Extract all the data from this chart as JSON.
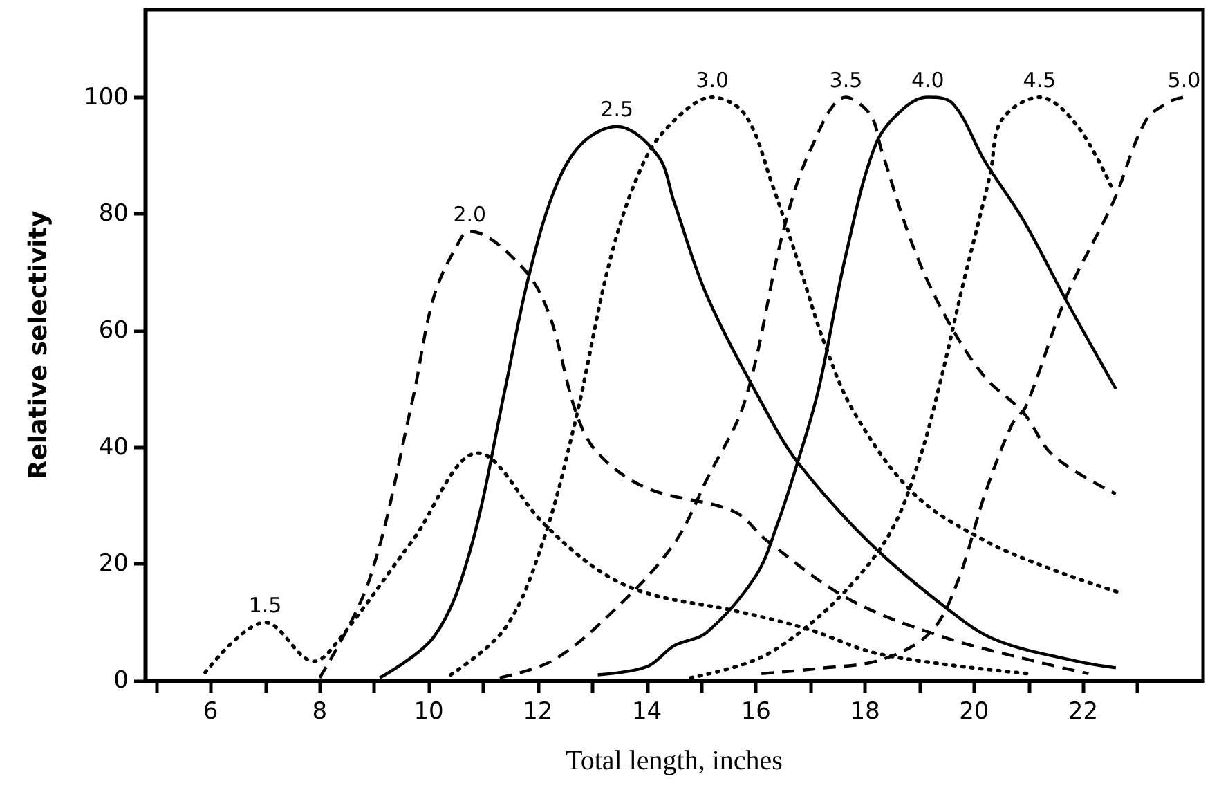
{
  "chart_data": {
    "type": "line",
    "xlabel": "Total length, inches",
    "ylabel": "Relative selectivity",
    "xlim": [
      4.8,
      24.2
    ],
    "ylim": [
      0,
      115
    ],
    "xticks": [
      {
        "value": 5,
        "label": null
      },
      6,
      {
        "value": 7,
        "label": null
      },
      8,
      {
        "value": 9,
        "label": null
      },
      10,
      {
        "value": 11,
        "label": null
      },
      12,
      {
        "value": 13,
        "label": null
      },
      14,
      {
        "value": 15,
        "label": null
      },
      16,
      {
        "value": 17,
        "label": null
      },
      18,
      {
        "value": 19,
        "label": null
      },
      20,
      {
        "value": 21,
        "label": null
      },
      22,
      {
        "value": 23,
        "label": null
      }
    ],
    "yticks": [
      0,
      20,
      40,
      60,
      80,
      100
    ],
    "annotations": [
      {
        "text": "1.5",
        "x": 7.0,
        "y": 10
      },
      {
        "text": "2.0",
        "x": 10.75,
        "y": 77
      },
      {
        "text": "2.5",
        "x": 13.45,
        "y": 95
      },
      {
        "text": "3.0",
        "x": 15.2,
        "y": 100
      },
      {
        "text": "3.5",
        "x": 17.65,
        "y": 100
      },
      {
        "text": "4.0",
        "x": 19.15,
        "y": 100
      },
      {
        "text": "4.5",
        "x": 21.2,
        "y": 100
      },
      {
        "text": "5.0",
        "x": 23.85,
        "y": 100
      }
    ],
    "marker": "none",
    "series": [
      {
        "color": "#000000",
        "line_style": "dotted",
        "x": [
          5.9,
          7.0,
          7.9,
          8.3,
          9.7,
          10.9,
          12.1,
          13.1,
          14.0,
          15.6,
          16.9,
          18.3,
          21.0
        ],
        "values": [
          1.4,
          10,
          3.3,
          6.4,
          24,
          39,
          27,
          19,
          15,
          12,
          9,
          4.5,
          1.2
        ]
      },
      {
        "color": "#000000",
        "line_style": "dashed",
        "x": [
          8.0,
          8.9,
          9.7,
          10.1,
          10.6,
          10.75,
          11.7,
          12.2,
          12.7,
          13.1,
          14.0,
          15.6,
          16.2,
          17.7,
          19.4,
          21.0,
          22.1
        ],
        "values": [
          0.5,
          17,
          48,
          66,
          76,
          77,
          71,
          63,
          46,
          39,
          33,
          29,
          24,
          14,
          7.6,
          3.6,
          1.2
        ]
      },
      {
        "color": "#000000",
        "line_style": "solid",
        "x": [
          9.1,
          10.1,
          10.75,
          11.4,
          11.8,
          12.3,
          12.8,
          13.45,
          14.2,
          14.5,
          15.1,
          16.2,
          16.8,
          18.1,
          19.5,
          20.4,
          21.9,
          22.6
        ],
        "values": [
          0.5,
          7.6,
          22,
          50,
          68,
          84,
          92,
          95,
          90,
          82,
          66,
          46,
          37,
          23.5,
          12.4,
          7,
          3.3,
          2.2
        ]
      },
      {
        "color": "#000000",
        "line_style": "dotted",
        "x": [
          10.4,
          11.4,
          12.1,
          12.7,
          13.35,
          13.95,
          14.5,
          15.2,
          15.8,
          16.3,
          16.8,
          17.25,
          17.8,
          18.9,
          20.2,
          21.45,
          22.7
        ],
        "values": [
          1,
          9,
          24,
          45,
          73,
          89,
          96,
          100,
          97,
          85,
          71,
          58,
          46,
          32,
          24,
          19,
          15
        ]
      },
      {
        "color": "#000000",
        "line_style": "dashed",
        "x": [
          11.3,
          12.3,
          13.5,
          14.5,
          15.1,
          15.8,
          16.5,
          17.0,
          17.65,
          18.1,
          18.3,
          18.9,
          19.5,
          20.2,
          20.9,
          21.45,
          22.6
        ],
        "values": [
          0.5,
          3.6,
          13,
          23.5,
          34.5,
          48,
          77,
          91,
          100,
          97,
          91,
          74,
          62,
          52,
          46,
          38.6,
          32
        ]
      },
      {
        "color": "#000000",
        "line_style": "solid",
        "x": [
          13.1,
          14.0,
          14.5,
          15.1,
          16.0,
          16.4,
          16.75,
          17.15,
          17.65,
          18.2,
          18.7,
          19.15,
          19.6,
          20.2,
          20.9,
          21.7,
          22.6
        ],
        "values": [
          1,
          2.4,
          6,
          8.3,
          18,
          27,
          37,
          50,
          73,
          92,
          98,
          100,
          99,
          89,
          79,
          65,
          50
        ]
      },
      {
        "color": "#000000",
        "line_style": "dotted",
        "x": [
          14.8,
          16.0,
          16.9,
          17.8,
          18.5,
          19.0,
          19.35,
          19.8,
          20.3,
          20.5,
          21.2,
          21.9,
          22.55
        ],
        "values": [
          0.5,
          3.6,
          9,
          17,
          26,
          38,
          50,
          68,
          87,
          96,
          100,
          95,
          84
        ]
      },
      {
        "color": "#000000",
        "line_style": "dashed",
        "x": [
          16.1,
          17.15,
          18.3,
          19.2,
          19.7,
          20.2,
          20.7,
          20.95,
          21.7,
          22.55,
          23.15,
          23.6,
          23.85
        ],
        "values": [
          1.2,
          2.1,
          3.6,
          8.3,
          17,
          32,
          44,
          47,
          66,
          82,
          96,
          99.3,
          100
        ]
      }
    ]
  }
}
